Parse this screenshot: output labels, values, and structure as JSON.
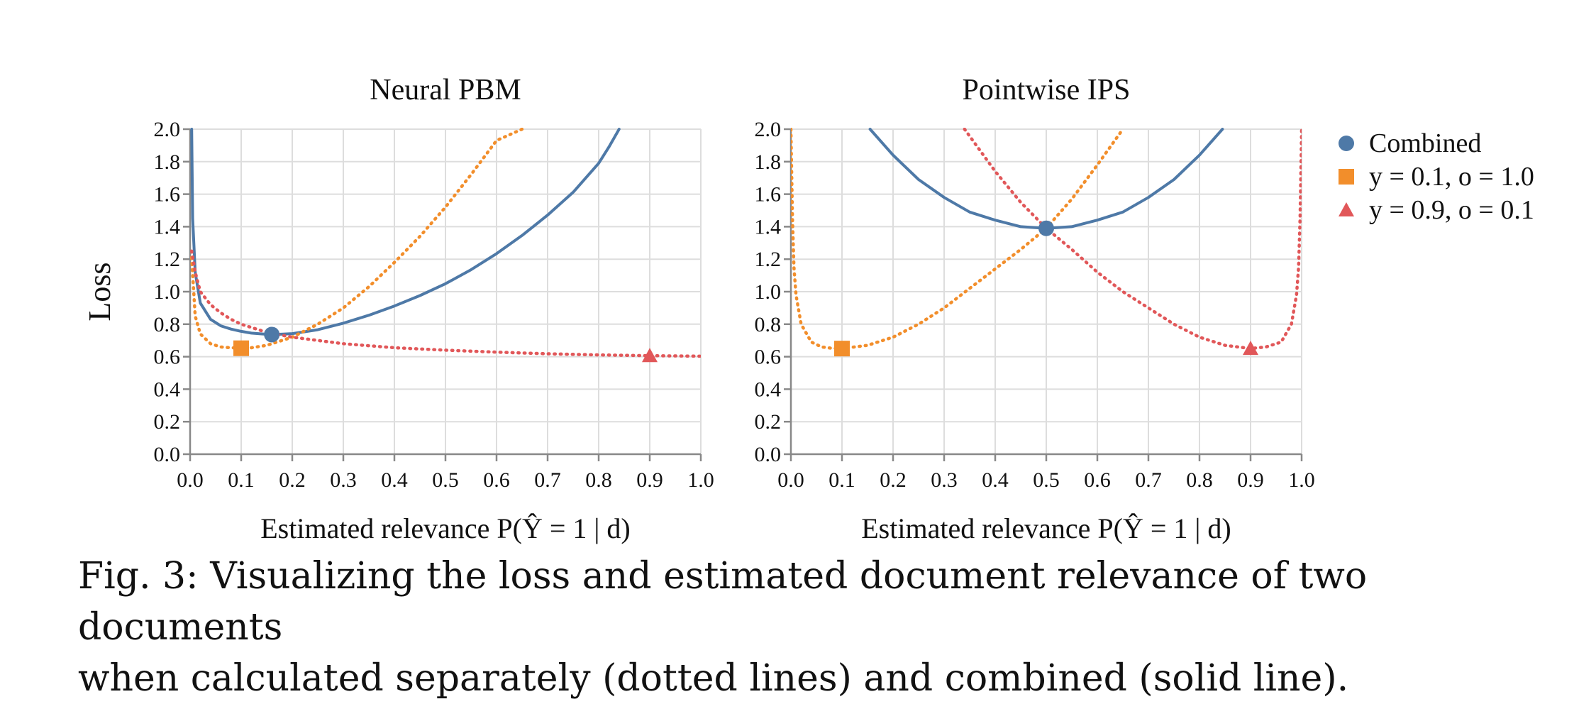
{
  "figure": {
    "caption_line1": "Fig. 3: Visualizing the loss and estimated document relevance of two documents",
    "caption_line2": "when calculated separately (dotted lines) and combined (solid line)."
  },
  "colors": {
    "combined": "#4e79a7",
    "doc_a": "#f28e2b",
    "doc_b": "#e15759",
    "grid": "#dddddd",
    "axis": "#888888"
  },
  "legend": [
    {
      "label": "Combined",
      "shape": "circle",
      "color": "#4e79a7"
    },
    {
      "label": "y = 0.1, o = 1.0",
      "shape": "square",
      "color": "#f28e2b"
    },
    {
      "label": "y = 0.9, o = 0.1",
      "shape": "triangle",
      "color": "#e15759"
    }
  ],
  "chart_data": [
    {
      "type": "line",
      "title": "Neural PBM",
      "xlabel": "Estimated relevance P(Ŷ = 1 | d)",
      "ylabel": "Loss",
      "xlim": [
        0,
        1
      ],
      "ylim": [
        0,
        2
      ],
      "x_ticks": [
        "0.0",
        "0.1",
        "0.2",
        "0.3",
        "0.4",
        "0.5",
        "0.6",
        "0.7",
        "0.8",
        "0.9",
        "1.0"
      ],
      "y_ticks": [
        "0.0",
        "0.2",
        "0.4",
        "0.6",
        "0.8",
        "1.0",
        "1.2",
        "1.4",
        "1.6",
        "1.8",
        "2.0"
      ],
      "grid": true,
      "series": [
        {
          "name": "Combined",
          "style": "solid",
          "x": [
            0.003,
            0.005,
            0.01,
            0.02,
            0.04,
            0.06,
            0.08,
            0.1,
            0.12,
            0.14,
            0.16,
            0.2,
            0.25,
            0.3,
            0.35,
            0.4,
            0.45,
            0.5,
            0.55,
            0.6,
            0.65,
            0.7,
            0.75,
            0.8,
            0.82,
            0.84
          ],
          "y": [
            2.0,
            1.45,
            1.12,
            0.93,
            0.83,
            0.79,
            0.77,
            0.756,
            0.745,
            0.74,
            0.736,
            0.742,
            0.766,
            0.806,
            0.855,
            0.912,
            0.976,
            1.049,
            1.135,
            1.234,
            1.346,
            1.471,
            1.612,
            1.79,
            1.89,
            2.0
          ]
        },
        {
          "name": "y = 0.1, o = 1.0",
          "style": "dotted",
          "x": [
            0.003,
            0.01,
            0.02,
            0.04,
            0.06,
            0.08,
            0.1,
            0.12,
            0.15,
            0.2,
            0.25,
            0.3,
            0.35,
            0.4,
            0.45,
            0.5,
            0.55,
            0.6,
            0.65
          ],
          "y": [
            1.21,
            0.85,
            0.74,
            0.68,
            0.66,
            0.655,
            0.652,
            0.655,
            0.67,
            0.72,
            0.8,
            0.9,
            1.03,
            1.18,
            1.34,
            1.52,
            1.72,
            1.93,
            2.0
          ]
        },
        {
          "name": "y = 0.9, o = 0.1",
          "style": "dotted",
          "x": [
            0.003,
            0.01,
            0.02,
            0.04,
            0.06,
            0.08,
            0.1,
            0.15,
            0.2,
            0.3,
            0.4,
            0.5,
            0.6,
            0.7,
            0.8,
            0.9,
            1.0
          ],
          "y": [
            1.25,
            1.12,
            1.0,
            0.92,
            0.87,
            0.83,
            0.8,
            0.75,
            0.72,
            0.68,
            0.655,
            0.64,
            0.628,
            0.618,
            0.611,
            0.606,
            0.603
          ]
        }
      ],
      "markers": [
        {
          "series": "Combined",
          "shape": "circle",
          "x": 0.16,
          "y": 0.736
        },
        {
          "series": "y = 0.1, o = 1.0",
          "shape": "square",
          "x": 0.1,
          "y": 0.652
        },
        {
          "series": "y = 0.9, o = 0.1",
          "shape": "triangle",
          "x": 0.9,
          "y": 0.606
        }
      ]
    },
    {
      "type": "line",
      "title": "Pointwise IPS",
      "xlabel": "Estimated relevance P(Ŷ = 1 | d)",
      "ylabel": "",
      "xlim": [
        0,
        1
      ],
      "ylim": [
        0,
        2
      ],
      "x_ticks": [
        "0.0",
        "0.1",
        "0.2",
        "0.3",
        "0.4",
        "0.5",
        "0.6",
        "0.7",
        "0.8",
        "0.9",
        "1.0"
      ],
      "y_ticks": [
        "0.0",
        "0.2",
        "0.4",
        "0.6",
        "0.8",
        "1.0",
        "1.2",
        "1.4",
        "1.6",
        "1.8",
        "2.0"
      ],
      "grid": true,
      "series": [
        {
          "name": "Combined",
          "style": "solid",
          "x": [
            0.155,
            0.2,
            0.25,
            0.3,
            0.35,
            0.4,
            0.45,
            0.5,
            0.55,
            0.6,
            0.65,
            0.7,
            0.75,
            0.8,
            0.845
          ],
          "y": [
            2.0,
            1.84,
            1.69,
            1.58,
            1.49,
            1.44,
            1.4,
            1.39,
            1.4,
            1.44,
            1.49,
            1.58,
            1.69,
            1.84,
            2.0
          ]
        },
        {
          "name": "y = 0.1, o = 1.0",
          "style": "dotted",
          "x": [
            0.0,
            0.003,
            0.006,
            0.01,
            0.02,
            0.04,
            0.06,
            0.08,
            0.1,
            0.15,
            0.2,
            0.25,
            0.3,
            0.35,
            0.4,
            0.45,
            0.5,
            0.55,
            0.6,
            0.65
          ],
          "y": [
            2.0,
            1.45,
            1.15,
            0.98,
            0.8,
            0.69,
            0.66,
            0.652,
            0.65,
            0.67,
            0.72,
            0.8,
            0.9,
            1.02,
            1.14,
            1.26,
            1.39,
            1.57,
            1.78,
            2.0
          ]
        },
        {
          "name": "y = 0.9, o = 0.1",
          "style": "dotted",
          "x": [
            0.34,
            0.4,
            0.45,
            0.5,
            0.55,
            0.6,
            0.65,
            0.7,
            0.75,
            0.8,
            0.85,
            0.9,
            0.93,
            0.96,
            0.98,
            0.99,
            0.994,
            0.997,
            1.0
          ],
          "y": [
            2.0,
            1.74,
            1.55,
            1.39,
            1.26,
            1.12,
            1.0,
            0.9,
            0.8,
            0.72,
            0.67,
            0.65,
            0.66,
            0.69,
            0.8,
            0.98,
            1.15,
            1.45,
            2.0
          ]
        }
      ],
      "markers": [
        {
          "series": "Combined",
          "shape": "circle",
          "x": 0.5,
          "y": 1.39
        },
        {
          "series": "y = 0.1, o = 1.0",
          "shape": "square",
          "x": 0.1,
          "y": 0.65
        },
        {
          "series": "y = 0.9, o = 0.1",
          "shape": "triangle",
          "x": 0.9,
          "y": 0.65
        }
      ]
    }
  ]
}
